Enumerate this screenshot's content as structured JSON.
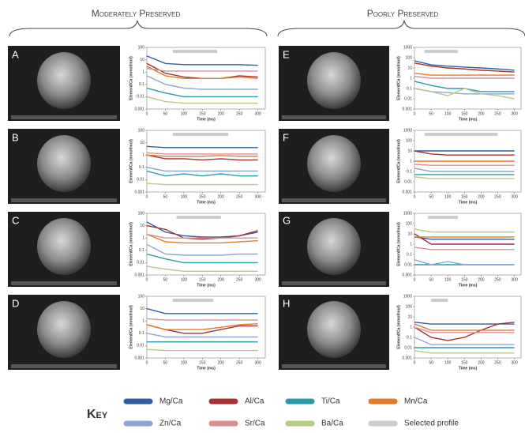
{
  "headers": [
    "Moderately Preserved",
    "Poorly Preserved"
  ],
  "key": {
    "title": "Key",
    "selected_profile": "Selected profile",
    "selected_color": "#cccccc"
  },
  "chart_data": [
    {
      "type": "line",
      "panel": "A",
      "ylabel": "Element/Ca (mmol/mol)",
      "xlabel": "Time (ms)",
      "log_y": true,
      "xlim": [
        0,
        320
      ],
      "xticks": [
        0,
        50,
        100,
        150,
        200,
        250,
        300
      ],
      "ylim": [
        0.001,
        100
      ],
      "yticks": [
        0.001,
        0.01,
        0.1,
        1,
        10,
        100
      ],
      "highlight": [
        70,
        190
      ],
      "x": [
        0,
        50,
        100,
        150,
        200,
        250,
        300
      ],
      "series": [
        {
          "name": "Mg/Ca",
          "color": "#2f5f9e",
          "values": [
            20,
            5,
            4,
            4,
            4,
            4,
            3.5
          ]
        },
        {
          "name": "Al/Ca",
          "color": "#a83232",
          "values": [
            5,
            0.8,
            0.4,
            0.3,
            0.3,
            0.5,
            0.4
          ]
        },
        {
          "name": "Ti/Ca",
          "color": "#2a9aa8",
          "values": [
            0.05,
            0.02,
            0.01,
            0.01,
            0.01,
            0.01,
            0.01
          ]
        },
        {
          "name": "Mn/Ca",
          "color": "#e07b2a",
          "values": [
            3,
            0.5,
            0.3,
            0.3,
            0.3,
            0.4,
            0.3
          ]
        },
        {
          "name": "Zn/Ca",
          "color": "#8fa5d6",
          "values": [
            0.5,
            0.1,
            0.05,
            0.04,
            0.04,
            0.04,
            0.04
          ]
        },
        {
          "name": "Sr/Ca",
          "color": "#d99090",
          "values": [
            2,
            1.2,
            1.2,
            1.2,
            1.2,
            1.2,
            1.2
          ]
        },
        {
          "name": "Ba/Ca",
          "color": "#b5cc85",
          "values": [
            0.01,
            0.004,
            0.003,
            0.003,
            0.003,
            0.003,
            0.003
          ]
        }
      ]
    },
    {
      "type": "line",
      "panel": "B",
      "ylabel": "Element/Ca (mmol/mol)",
      "xlabel": "Time (ms)",
      "log_y": true,
      "xlim": [
        0,
        320
      ],
      "xticks": [
        0,
        50,
        100,
        150,
        200,
        250,
        300
      ],
      "ylim": [
        0.001,
        100
      ],
      "yticks": [
        0.001,
        0.01,
        0.1,
        1,
        10,
        100
      ],
      "highlight": [
        70,
        220
      ],
      "x": [
        0,
        50,
        100,
        150,
        200,
        250,
        300
      ],
      "series": [
        {
          "name": "Mg/Ca",
          "color": "#2f5f9e",
          "values": [
            5,
            4,
            4,
            4,
            4,
            4,
            4
          ]
        },
        {
          "name": "Al/Ca",
          "color": "#a83232",
          "values": [
            1,
            0.5,
            0.5,
            0.4,
            0.5,
            0.4,
            0.4
          ]
        },
        {
          "name": "Ti/Ca",
          "color": "#2a9aa8",
          "values": [
            0.05,
            0.02,
            0.03,
            0.02,
            0.03,
            0.02,
            0.02
          ]
        },
        {
          "name": "Mn/Ca",
          "color": "#e07b2a",
          "values": [
            1,
            0.8,
            0.8,
            0.8,
            0.9,
            0.8,
            0.8
          ]
        },
        {
          "name": "Zn/Ca",
          "color": "#8fa5d6",
          "values": [
            0.1,
            0.05,
            0.05,
            0.05,
            0.05,
            0.05,
            0.05
          ]
        },
        {
          "name": "Sr/Ca",
          "color": "#d99090",
          "values": [
            1.5,
            1.2,
            1.2,
            1.2,
            1.2,
            1.2,
            1.2
          ]
        },
        {
          "name": "Ba/Ca",
          "color": "#b5cc85",
          "values": [
            0.005,
            0.004,
            0.004,
            0.004,
            0.004,
            0.004,
            0.004
          ]
        }
      ]
    },
    {
      "type": "line",
      "panel": "C",
      "ylabel": "Element/Ca (mmol/mol)",
      "xlabel": "Time (ms)",
      "log_y": true,
      "xlim": [
        0,
        320
      ],
      "xticks": [
        0,
        50,
        100,
        150,
        200,
        250,
        300
      ],
      "ylim": [
        0.001,
        100
      ],
      "yticks": [
        0.001,
        0.01,
        0.1,
        1,
        10,
        100
      ],
      "highlight": [
        80,
        200
      ],
      "x": [
        0,
        50,
        100,
        150,
        200,
        250,
        300
      ],
      "series": [
        {
          "name": "Mg/Ca",
          "color": "#2f5f9e",
          "values": [
            20,
            3,
            1.5,
            1.2,
            1.2,
            1.5,
            3
          ]
        },
        {
          "name": "Al/Ca",
          "color": "#a83232",
          "values": [
            10,
            5,
            1,
            0.8,
            1,
            1.5,
            4
          ]
        },
        {
          "name": "Ti/Ca",
          "color": "#2a9aa8",
          "values": [
            0.05,
            0.02,
            0.01,
            0.01,
            0.01,
            0.01,
            0.01
          ]
        },
        {
          "name": "Mn/Ca",
          "color": "#e07b2a",
          "values": [
            2,
            0.5,
            0.4,
            0.4,
            0.4,
            0.5,
            0.6
          ]
        },
        {
          "name": "Zn/Ca",
          "color": "#8fa5d6",
          "values": [
            0.3,
            0.05,
            0.04,
            0.04,
            0.04,
            0.05,
            0.05
          ]
        },
        {
          "name": "Sr/Ca",
          "color": "#d99090",
          "values": [
            2,
            1,
            1,
            1,
            1,
            1,
            1
          ]
        },
        {
          "name": "Ba/Ca",
          "color": "#b5cc85",
          "values": [
            0.005,
            0.003,
            0.002,
            0.002,
            0.002,
            0.002,
            0.002
          ]
        }
      ]
    },
    {
      "type": "line",
      "panel": "D",
      "ylabel": "Element/Ca (mmol/mol)",
      "xlabel": "Time (ms)",
      "log_y": true,
      "xlim": [
        0,
        320
      ],
      "xticks": [
        0,
        50,
        100,
        150,
        200,
        250,
        300
      ],
      "ylim": [
        0.001,
        100
      ],
      "yticks": [
        0.001,
        0.01,
        0.1,
        1,
        10,
        100
      ],
      "highlight": [
        70,
        180
      ],
      "x": [
        0,
        50,
        100,
        150,
        200,
        250,
        300
      ],
      "series": [
        {
          "name": "Mg/Ca",
          "color": "#2f5f9e",
          "values": [
            10,
            4,
            4,
            4,
            4,
            4,
            4
          ]
        },
        {
          "name": "Al/Ca",
          "color": "#a83232",
          "values": [
            0.5,
            0.2,
            0.1,
            0.1,
            0.2,
            0.4,
            0.4
          ]
        },
        {
          "name": "Ti/Ca",
          "color": "#2a9aa8",
          "values": [
            0.02,
            0.02,
            0.02,
            0.02,
            0.02,
            0.02,
            0.02
          ]
        },
        {
          "name": "Mn/Ca",
          "color": "#e07b2a",
          "values": [
            0.5,
            0.2,
            0.2,
            0.2,
            0.3,
            0.5,
            0.6
          ]
        },
        {
          "name": "Zn/Ca",
          "color": "#8fa5d6",
          "values": [
            0.1,
            0.05,
            0.05,
            0.05,
            0.05,
            0.05,
            0.05
          ]
        },
        {
          "name": "Sr/Ca",
          "color": "#d99090",
          "values": [
            1.5,
            1.2,
            1.2,
            1.2,
            1.2,
            1.2,
            1.2
          ]
        },
        {
          "name": "Ba/Ca",
          "color": "#b5cc85",
          "values": [
            0.005,
            0.004,
            0.004,
            0.004,
            0.004,
            0.004,
            0.004
          ]
        }
      ]
    },
    {
      "type": "line",
      "panel": "E",
      "ylabel": "Element/Ca (mmol/mol)",
      "xlabel": "Time (ms)",
      "log_y": true,
      "xlim": [
        0,
        320
      ],
      "xticks": [
        0,
        50,
        100,
        150,
        200,
        250,
        300
      ],
      "ylim": [
        0.001,
        1000
      ],
      "yticks": [
        0.001,
        0.01,
        0.1,
        1,
        10,
        100,
        1000
      ],
      "highlight": [
        30,
        130
      ],
      "x": [
        0,
        50,
        100,
        150,
        200,
        250,
        300
      ],
      "series": [
        {
          "name": "Mg/Ca",
          "color": "#2f5f9e",
          "values": [
            50,
            20,
            15,
            12,
            10,
            8,
            6
          ]
        },
        {
          "name": "Al/Ca",
          "color": "#a83232",
          "values": [
            30,
            15,
            10,
            8,
            6,
            5,
            4
          ]
        },
        {
          "name": "Ti/Ca",
          "color": "#2a9aa8",
          "values": [
            0.5,
            0.2,
            0.1,
            0.1,
            0.05,
            0.05,
            0.05
          ]
        },
        {
          "name": "Mn/Ca",
          "color": "#e07b2a",
          "values": [
            3,
            2,
            2,
            2,
            2,
            2,
            2
          ]
        },
        {
          "name": "Zn/Ca",
          "color": "#8fa5d6",
          "values": [
            0.1,
            0.05,
            0.04,
            0.03,
            0.03,
            0.03,
            0.03
          ]
        },
        {
          "name": "Sr/Ca",
          "color": "#d99090",
          "values": [
            1.5,
            1,
            1,
            1,
            1,
            1,
            1
          ]
        },
        {
          "name": "Ba/Ca",
          "color": "#b5cc85",
          "values": [
            0.1,
            0.05,
            0.02,
            0.1,
            0.03,
            0.02,
            0.01
          ]
        }
      ]
    },
    {
      "type": "line",
      "panel": "F",
      "ylabel": "Element/Ca (mmol/mol)",
      "xlabel": "Time (ms)",
      "log_y": true,
      "xlim": [
        0,
        320
      ],
      "xticks": [
        0,
        50,
        100,
        150,
        200,
        250,
        300
      ],
      "ylim": [
        0.001,
        1000
      ],
      "yticks": [
        0.001,
        0.01,
        0.1,
        1,
        10,
        100,
        1000
      ],
      "highlight": [
        30,
        250
      ],
      "x": [
        0,
        50,
        100,
        150,
        200,
        250,
        300
      ],
      "series": [
        {
          "name": "Mg/Ca",
          "color": "#2f5f9e",
          "values": [
            10,
            10,
            10,
            10,
            10,
            10,
            10
          ]
        },
        {
          "name": "Al/Ca",
          "color": "#a83232",
          "values": [
            10,
            5,
            4,
            4,
            4,
            4,
            4
          ]
        },
        {
          "name": "Ti/Ca",
          "color": "#2a9aa8",
          "values": [
            0.05,
            0.05,
            0.05,
            0.05,
            0.05,
            0.05,
            0.05
          ]
        },
        {
          "name": "Mn/Ca",
          "color": "#e07b2a",
          "values": [
            1,
            1,
            1,
            1,
            1,
            1,
            1
          ]
        },
        {
          "name": "Zn/Ca",
          "color": "#8fa5d6",
          "values": [
            0.2,
            0.1,
            0.1,
            0.1,
            0.1,
            0.1,
            0.1
          ]
        },
        {
          "name": "Sr/Ca",
          "color": "#d99090",
          "values": [
            0.5,
            0.4,
            0.4,
            0.4,
            0.4,
            0.4,
            0.4
          ]
        },
        {
          "name": "Ba/Ca",
          "color": "#b5cc85",
          "values": [
            0.03,
            0.02,
            0.02,
            0.02,
            0.02,
            0.02,
            0.02
          ]
        }
      ]
    },
    {
      "type": "line",
      "panel": "G",
      "ylabel": "Element/Ca (mmol/mol)",
      "xlabel": "Time (ms)",
      "log_y": true,
      "xlim": [
        0,
        320
      ],
      "xticks": [
        0,
        50,
        100,
        150,
        200,
        250,
        300
      ],
      "ylim": [
        0.001,
        1000
      ],
      "yticks": [
        0.001,
        0.01,
        0.1,
        1,
        10,
        100,
        1000
      ],
      "highlight": [
        40,
        130
      ],
      "x": [
        0,
        50,
        100,
        150,
        200,
        250,
        300
      ],
      "series": [
        {
          "name": "Mg/Ca",
          "color": "#2f5f9e",
          "values": [
            5,
            3,
            3,
            3,
            3,
            3,
            3
          ]
        },
        {
          "name": "Al/Ca",
          "color": "#a83232",
          "values": [
            10,
            1,
            1,
            1,
            1,
            1,
            1
          ]
        },
        {
          "name": "Ti/Ca",
          "color": "#2a9aa8",
          "values": [
            0.01,
            0.01,
            0.01,
            0.01,
            0.01,
            0.01,
            0.01
          ]
        },
        {
          "name": "Mn/Ca",
          "color": "#e07b2a",
          "values": [
            5,
            5,
            5,
            5,
            5,
            5,
            5
          ]
        },
        {
          "name": "Zn/Ca",
          "color": "#8fa5d6",
          "values": [
            0.03,
            0.01,
            0.02,
            0.01,
            0.01,
            0.01,
            0.01
          ]
        },
        {
          "name": "Sr/Ca",
          "color": "#d99090",
          "values": [
            0.5,
            0.3,
            0.3,
            0.3,
            0.3,
            0.3,
            0.3
          ]
        },
        {
          "name": "Ba/Ca",
          "color": "#b5cc85",
          "values": [
            30,
            15,
            15,
            15,
            15,
            15,
            15
          ]
        }
      ]
    },
    {
      "type": "line",
      "panel": "H",
      "ylabel": "Element/Ca (mmol/mol)",
      "xlabel": "Time (ms)",
      "log_y": true,
      "xlim": [
        0,
        320
      ],
      "xticks": [
        0,
        50,
        100,
        150,
        200,
        250,
        300
      ],
      "ylim": [
        0.001,
        1000
      ],
      "yticks": [
        0.001,
        0.01,
        0.1,
        1,
        10,
        100,
        1000
      ],
      "highlight": [
        50,
        100
      ],
      "x": [
        0,
        50,
        100,
        150,
        200,
        250,
        300
      ],
      "series": [
        {
          "name": "Mg/Ca",
          "color": "#2f5f9e",
          "values": [
            3,
            2,
            2,
            2,
            2,
            2,
            2
          ]
        },
        {
          "name": "Al/Ca",
          "color": "#a83232",
          "values": [
            1,
            0.1,
            0.05,
            0.1,
            0.5,
            2,
            3
          ]
        },
        {
          "name": "Ti/Ca",
          "color": "#2a9aa8",
          "values": [
            0.01,
            0.01,
            0.01,
            0.01,
            0.01,
            0.01,
            0.01
          ]
        },
        {
          "name": "Mn/Ca",
          "color": "#e07b2a",
          "values": [
            2,
            0.5,
            0.5,
            0.5,
            0.5,
            0.5,
            0.5
          ]
        },
        {
          "name": "Zn/Ca",
          "color": "#8fa5d6",
          "values": [
            0.1,
            0.02,
            0.02,
            0.02,
            0.02,
            0.02,
            0.02
          ]
        },
        {
          "name": "Sr/Ca",
          "color": "#d99090",
          "values": [
            1,
            0.3,
            0.3,
            0.3,
            0.3,
            0.3,
            0.3
          ]
        },
        {
          "name": "Ba/Ca",
          "color": "#b5cc85",
          "values": [
            0.005,
            0.003,
            0.003,
            0.003,
            0.003,
            0.003,
            0.003
          ]
        }
      ]
    }
  ]
}
